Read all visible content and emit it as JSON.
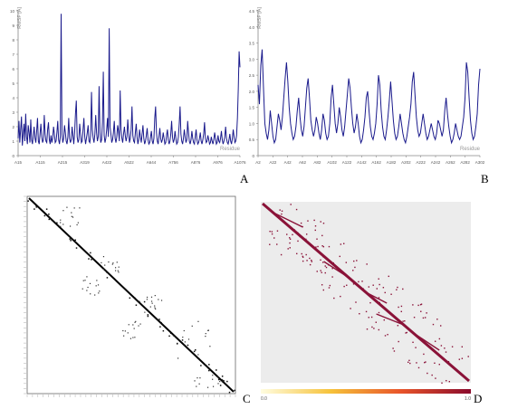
{
  "chart_data": [
    {
      "type": "line",
      "panel_label": "A",
      "ylabel": "RMSF [Å]",
      "xlabel": "Residue",
      "ylim": [
        0,
        10
      ],
      "yticks": [
        "0",
        "1",
        "2",
        "3",
        "4",
        "5",
        "6",
        "7",
        "8",
        "9",
        "10"
      ],
      "xticks": [
        "A15",
        "A115",
        "A215",
        "A319",
        "A422",
        "A522",
        "A644",
        "A756",
        "A876",
        "A976",
        "A1076"
      ],
      "line_color": "#1a1a8c",
      "y": [
        1.2,
        2.4,
        0.9,
        1.8,
        2.7,
        0.7,
        1.5,
        2.2,
        1.0,
        2.9,
        1.3,
        0.8,
        2.1,
        1.6,
        0.9,
        2.5,
        1.1,
        0.8,
        1.4,
        2.0,
        1.2,
        0.9,
        1.7,
        2.6,
        1.0,
        0.8,
        1.5,
        2.2,
        1.3,
        0.9,
        1.1,
        2.8,
        1.5,
        1.0,
        0.9,
        1.8,
        2.3,
        1.1,
        0.8,
        1.4,
        0.9,
        1.2,
        2.0,
        1.5,
        0.9,
        1.0,
        1.6,
        2.4,
        1.1,
        0.8,
        1.3,
        9.8,
        1.5,
        0.9,
        1.2,
        2.1,
        1.6,
        1.0,
        0.8,
        1.3,
        2.6,
        1.2,
        0.9,
        1.1,
        2.0,
        1.4,
        0.8,
        1.6,
        2.9,
        3.8,
        1.3,
        0.9,
        1.1,
        2.2,
        1.5,
        0.9,
        1.0,
        1.8,
        2.6,
        1.3,
        0.8,
        1.2,
        1.6,
        2.1,
        1.0,
        0.9,
        1.4,
        4.4,
        1.8,
        1.2,
        0.9,
        1.5,
        2.8,
        1.6,
        1.0,
        1.3,
        4.8,
        1.6,
        0.9,
        1.1,
        2.3,
        5.8,
        1.4,
        0.9,
        1.2,
        1.8,
        2.6,
        1.3,
        8.8,
        2.0,
        1.5,
        0.9,
        1.1,
        1.6,
        2.4,
        1.2,
        0.9,
        1.3,
        2.1,
        1.7,
        1.0,
        4.5,
        1.8,
        1.2,
        0.9,
        1.5,
        2.0,
        1.4,
        1.0,
        1.3,
        2.5,
        1.6,
        0.9,
        1.2,
        1.8,
        3.4,
        1.4,
        1.0,
        0.9,
        1.6,
        2.2,
        1.3,
        0.8,
        1.1,
        1.8,
        1.3,
        0.9,
        1.5,
        2.1,
        1.2,
        0.8,
        1.0,
        1.4,
        1.9,
        1.1,
        0.8,
        0.9,
        1.3,
        1.7,
        1.0,
        0.8,
        1.2,
        2.6,
        3.4,
        1.6,
        1.0,
        0.8,
        1.3,
        1.9,
        1.2,
        0.9,
        1.1,
        1.6,
        1.2,
        0.8,
        0.9,
        1.4,
        1.8,
        1.1,
        0.8,
        1.0,
        1.5,
        2.4,
        1.3,
        0.9,
        1.1,
        1.7,
        1.2,
        0.8,
        0.9,
        1.3,
        2.2,
        3.4,
        1.5,
        1.0,
        0.8,
        1.2,
        1.8,
        1.3,
        0.9,
        1.1,
        2.4,
        1.6,
        1.0,
        0.8,
        1.1,
        1.7,
        1.2,
        0.9,
        0.8,
        1.3,
        1.8,
        1.1,
        0.8,
        0.9,
        1.2,
        1.6,
        1.0,
        0.8,
        1.1,
        1.5,
        2.3,
        1.2,
        0.9,
        1.0,
        1.4,
        1.1,
        0.8,
        0.9,
        1.3,
        1.0,
        0.8,
        1.1,
        1.6,
        1.2,
        0.8,
        0.9,
        1.4,
        1.0,
        0.9,
        1.2,
        1.7,
        1.1,
        0.8,
        1.0,
        1.3,
        2.0,
        1.2,
        0.9,
        0.8,
        1.1,
        1.5,
        1.0,
        0.8,
        1.2,
        1.8,
        1.3,
        0.9,
        1.0,
        1.4,
        2.6,
        4.6,
        7.2,
        6.1
      ]
    },
    {
      "type": "line",
      "panel_label": "B",
      "ylabel": "RMSF [Å]",
      "xlabel": "Residue",
      "ylim": [
        0,
        4.5
      ],
      "yticks": [
        "0",
        "0.5",
        "1.0",
        "1.5",
        "2.0",
        "2.5",
        "3.0",
        "3.5",
        "4.0",
        "4.5"
      ],
      "xticks": [
        "A2",
        "A22",
        "A42",
        "A62",
        "A82",
        "A102",
        "A122",
        "A142",
        "A162",
        "A182",
        "A202",
        "A222",
        "A242",
        "A262",
        "A282",
        "A302"
      ],
      "line_color": "#1a1a8c",
      "y": [
        2.2,
        1.6,
        2.8,
        3.3,
        2.1,
        1.0,
        0.7,
        0.5,
        0.8,
        1.4,
        1.0,
        0.6,
        0.4,
        0.5,
        0.9,
        1.3,
        1.1,
        0.8,
        1.2,
        1.8,
        2.4,
        2.9,
        2.3,
        1.5,
        1.0,
        0.7,
        0.5,
        0.6,
        0.9,
        1.4,
        1.8,
        1.2,
        0.8,
        0.6,
        0.9,
        1.5,
        2.1,
        2.4,
        1.8,
        1.1,
        0.8,
        0.6,
        0.8,
        1.2,
        1.0,
        0.7,
        0.5,
        0.8,
        1.3,
        1.1,
        0.7,
        0.5,
        0.6,
        1.0,
        1.8,
        2.2,
        1.6,
        1.0,
        0.7,
        1.0,
        1.5,
        1.2,
        0.8,
        0.6,
        0.9,
        1.4,
        1.9,
        2.4,
        2.1,
        1.5,
        1.0,
        0.7,
        0.9,
        1.3,
        1.0,
        0.6,
        0.4,
        0.5,
        0.8,
        1.2,
        1.8,
        2.0,
        1.4,
        0.9,
        0.6,
        0.5,
        0.7,
        1.0,
        1.6,
        2.5,
        2.2,
        1.4,
        0.9,
        0.6,
        0.5,
        0.8,
        1.2,
        1.7,
        2.3,
        1.7,
        1.1,
        0.7,
        0.5,
        0.6,
        0.9,
        1.3,
        1.0,
        0.7,
        0.5,
        0.4,
        0.6,
        0.9,
        1.2,
        1.6,
        2.3,
        2.6,
        1.9,
        1.2,
        0.8,
        0.6,
        0.7,
        1.0,
        1.3,
        1.0,
        0.7,
        0.5,
        0.6,
        0.8,
        1.0,
        0.8,
        0.6,
        0.5,
        0.7,
        1.1,
        1.0,
        0.8,
        0.6,
        0.8,
        1.4,
        1.8,
        1.3,
        0.9,
        0.6,
        0.4,
        0.5,
        0.7,
        1.0,
        0.8,
        0.6,
        0.5,
        0.6,
        0.9,
        1.2,
        1.8,
        2.9,
        2.6,
        1.8,
        1.1,
        0.7,
        0.5,
        0.6,
        0.9,
        1.3,
        2.2,
        2.7
      ]
    },
    {
      "type": "heatmap",
      "panel_label": "C",
      "description_tick_count": 40,
      "tick_labels_visible": false,
      "color": "#000000"
    },
    {
      "type": "heatmap",
      "panel_label": "D",
      "colorbar_min": "0.0",
      "colorbar_max": "1.0",
      "colorbar_colors": [
        "#fffde0",
        "#f6c23a",
        "#e8542a",
        "#8a0a2c"
      ],
      "cell_color": "#8a1238",
      "background": "#ececec"
    }
  ],
  "labels": {
    "a": "A",
    "b": "B",
    "c": "C",
    "d": "D"
  }
}
